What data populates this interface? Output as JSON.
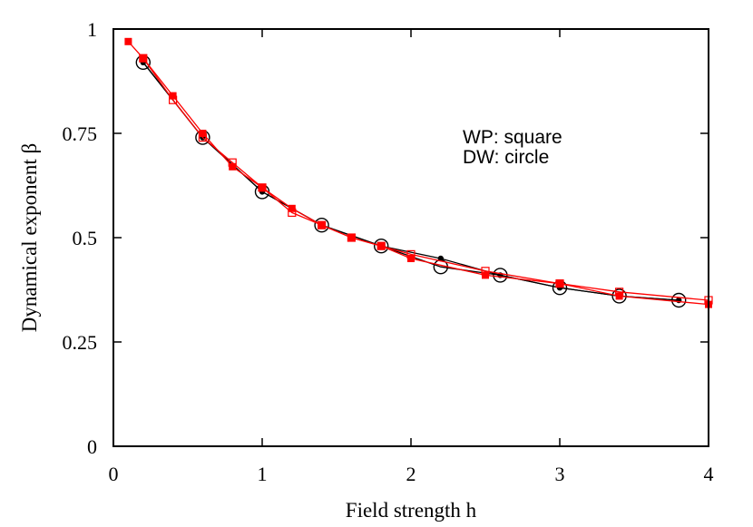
{
  "chart_data": {
    "type": "line",
    "xlabel": "Field strength h",
    "ylabel": "Dynamical exponent β",
    "xlim": [
      0,
      4
    ],
    "ylim": [
      0,
      1
    ],
    "xticks": [
      0,
      1,
      2,
      3,
      4
    ],
    "xtick_labels": [
      "0",
      "1",
      "2",
      "3",
      "4"
    ],
    "yticks": [
      0,
      0.25,
      0.5,
      0.75,
      1
    ],
    "ytick_labels": [
      "0",
      "0.25",
      "0.5",
      "0.75",
      "1"
    ],
    "grid": false,
    "annotations": [
      "WP: square",
      "DW: circle"
    ],
    "series": [
      {
        "color": "#000000",
        "marker": "filled-dot",
        "x": [
          0.2,
          0.6,
          1.0,
          1.4,
          1.8,
          2.2,
          2.6,
          3.0,
          3.4,
          3.8
        ],
        "y": [
          0.92,
          0.74,
          0.61,
          0.53,
          0.48,
          0.45,
          0.41,
          0.38,
          0.36,
          0.35
        ]
      },
      {
        "color": "#000000",
        "marker": "open-circle",
        "x": [
          0.2,
          0.6,
          1.0,
          1.4,
          1.8,
          2.2,
          2.6,
          3.0,
          3.4,
          3.8
        ],
        "y": [
          0.92,
          0.74,
          0.61,
          0.53,
          0.48,
          0.43,
          0.41,
          0.38,
          0.36,
          0.35
        ]
      },
      {
        "color": "#ff0000",
        "marker": "filled-square",
        "x": [
          0.1,
          0.2,
          0.4,
          0.6,
          0.8,
          1.0,
          1.2,
          1.4,
          1.6,
          1.8,
          2.0,
          2.5,
          3.0,
          3.4,
          4.0
        ],
        "y": [
          0.97,
          0.93,
          0.84,
          0.75,
          0.67,
          0.62,
          0.57,
          0.53,
          0.5,
          0.48,
          0.45,
          0.41,
          0.39,
          0.36,
          0.34
        ]
      },
      {
        "color": "#ff0000",
        "marker": "open-square",
        "x": [
          0.2,
          0.4,
          0.6,
          0.8,
          1.0,
          1.2,
          1.4,
          1.6,
          1.8,
          2.0,
          2.5,
          3.0,
          3.4,
          4.0
        ],
        "y": [
          0.93,
          0.83,
          0.74,
          0.68,
          0.62,
          0.56,
          0.53,
          0.5,
          0.48,
          0.46,
          0.42,
          0.39,
          0.37,
          0.35
        ]
      }
    ]
  }
}
